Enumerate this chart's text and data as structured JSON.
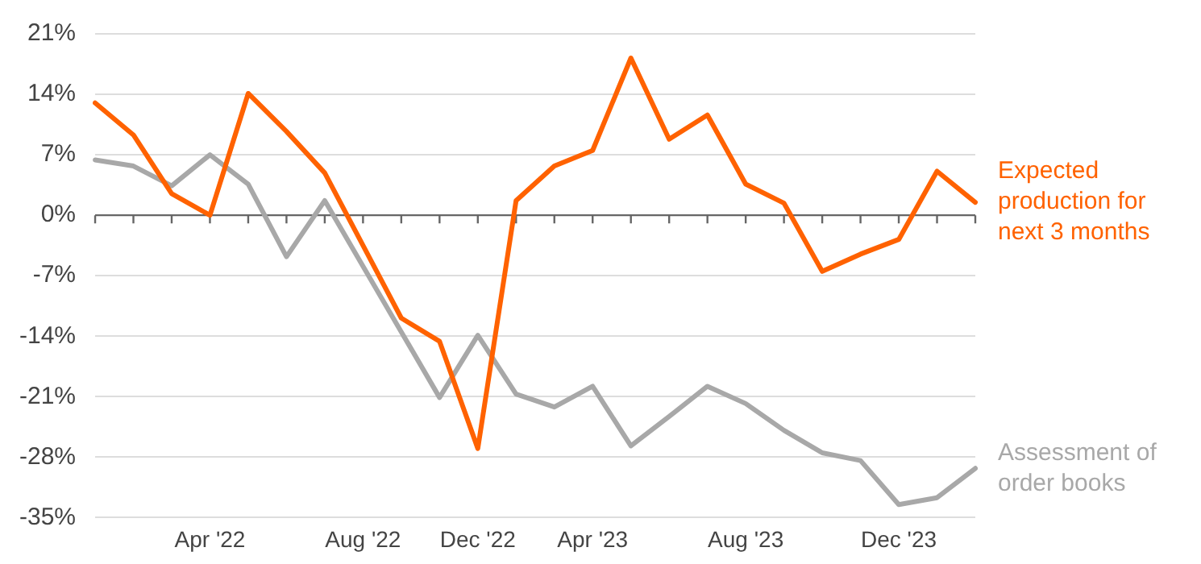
{
  "chart_data": {
    "type": "line",
    "categories": [
      null,
      null,
      null,
      "Apr '22",
      null,
      null,
      null,
      "Aug '22",
      null,
      null,
      "Dec '22",
      null,
      null,
      "Apr '23",
      null,
      null,
      null,
      "Aug '23",
      null,
      null,
      null,
      "Dec '23",
      null,
      null
    ],
    "series": [
      {
        "name": "Expected production for next 3 months",
        "color": "#ff6200",
        "values": [
          13.0,
          9.3,
          2.5,
          0,
          14.1,
          9.7,
          4.9,
          -3.5,
          -11.9,
          -14.6,
          -27.0,
          1.7,
          5.7,
          7.5,
          18.2,
          8.8,
          11.6,
          3.6,
          1.4,
          -6.5,
          -4.5,
          -2.8,
          5.1,
          1.5
        ]
      },
      {
        "name": "Assessment of order books",
        "color": "#a8a8a8",
        "values": [
          6.4,
          5.7,
          3.4,
          7.0,
          3.6,
          -4.8,
          1.7,
          -5.9,
          -13.5,
          -21.1,
          -13.9,
          -20.7,
          -22.2,
          -19.8,
          -26.7,
          -23.3,
          -19.8,
          -21.8,
          -24.9,
          -27.5,
          -28.4,
          -33.5,
          -32.7,
          -29.3
        ]
      }
    ],
    "ylim": [
      -35,
      21
    ],
    "yticks": [
      {
        "value": -35,
        "label": "-35%"
      },
      {
        "value": -28,
        "label": "-28%"
      },
      {
        "value": -21,
        "label": "-21%"
      },
      {
        "value": -14,
        "label": "-14%"
      },
      {
        "value": -7,
        "label": "-7%"
      },
      {
        "value": 0,
        "label": "0%"
      },
      {
        "value": 7,
        "label": "7%"
      },
      {
        "value": 14,
        "label": "14%"
      },
      {
        "value": 21,
        "label": "21%"
      }
    ],
    "grid": "y",
    "legend": "right",
    "marker": "none",
    "line_style": "solid"
  }
}
